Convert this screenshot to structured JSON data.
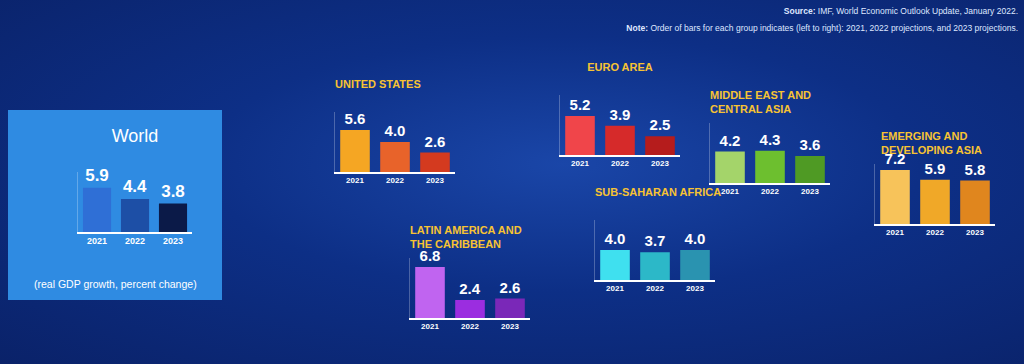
{
  "chart_data": [
    {
      "type": "bar",
      "title": "World",
      "subtitle": "(real GDP growth, percent change)",
      "categories": [
        "2021",
        "2022",
        "2023"
      ],
      "values": [
        5.9,
        4.4,
        3.8
      ],
      "value_labels": [
        "5.9",
        "4.4",
        "3.8"
      ],
      "colors": [
        "#2f6fd6",
        "#1d4fa6",
        "#0b1a48"
      ],
      "ylim": [
        0,
        8
      ],
      "data_labels": true,
      "tick_labels": "x"
    },
    {
      "type": "bar",
      "title": "UNITED STATES",
      "categories": [
        "2021",
        "2022",
        "2023"
      ],
      "values": [
        5.6,
        4.0,
        2.6
      ],
      "value_labels": [
        "5.6",
        "4.0",
        "2.6"
      ],
      "colors": [
        "#f5a623",
        "#e8632a",
        "#d43a1f"
      ],
      "ylim": [
        0,
        8
      ],
      "data_labels": true,
      "tick_labels": "x"
    },
    {
      "type": "bar",
      "title": "EURO AREA",
      "categories": [
        "2021",
        "2022",
        "2023"
      ],
      "values": [
        5.2,
        3.9,
        2.5
      ],
      "value_labels": [
        "5.2",
        "3.9",
        "2.5"
      ],
      "colors": [
        "#f0454a",
        "#d62a2a",
        "#b51c1c"
      ],
      "ylim": [
        0,
        8
      ],
      "data_labels": true,
      "tick_labels": "x"
    },
    {
      "type": "bar",
      "title": "MIDDLE EAST AND\nCENTRAL ASIA",
      "categories": [
        "2021",
        "2022",
        "2023"
      ],
      "values": [
        4.2,
        4.3,
        3.6
      ],
      "value_labels": [
        "4.2",
        "4.3",
        "3.6"
      ],
      "colors": [
        "#a4d46a",
        "#6dbf2f",
        "#4f9a24"
      ],
      "ylim": [
        0,
        8
      ],
      "data_labels": true,
      "tick_labels": "x"
    },
    {
      "type": "bar",
      "title": "EMERGING AND\nDEVELOPING ASIA",
      "categories": [
        "2021",
        "2022",
        "2023"
      ],
      "values": [
        7.2,
        5.9,
        5.8
      ],
      "value_labels": [
        "7.2",
        "5.9",
        "5.8"
      ],
      "colors": [
        "#f7c35a",
        "#f0a828",
        "#e0861e"
      ],
      "ylim": [
        0,
        8
      ],
      "data_labels": true,
      "tick_labels": "x"
    },
    {
      "type": "bar",
      "title": "LATIN AMERICA AND\nTHE CARIBBEAN",
      "categories": [
        "2021",
        "2022",
        "2023"
      ],
      "values": [
        6.8,
        2.4,
        2.6
      ],
      "value_labels": [
        "6.8",
        "2.4",
        "2.6"
      ],
      "colors": [
        "#c064f0",
        "#9b2de0",
        "#7a28b8"
      ],
      "ylim": [
        0,
        8
      ],
      "data_labels": true,
      "tick_labels": "x"
    },
    {
      "type": "bar",
      "title": "SUB-SAHARAN AFRICA",
      "categories": [
        "2021",
        "2022",
        "2023"
      ],
      "values": [
        4.0,
        3.7,
        4.0
      ],
      "value_labels": [
        "4.0",
        "3.7",
        "4.0"
      ],
      "colors": [
        "#3fe0ef",
        "#2cb8c8",
        "#2a93b0"
      ],
      "ylim": [
        0,
        8
      ],
      "data_labels": true,
      "tick_labels": "x"
    }
  ],
  "source": {
    "label": "Source:",
    "text": "IMF, World Economic Outlook Update, January 2022."
  },
  "note": {
    "label": "Note:",
    "text": "Order of bars for each group indicates (left to right): 2021, 2022 projections, and 2023 projections."
  }
}
